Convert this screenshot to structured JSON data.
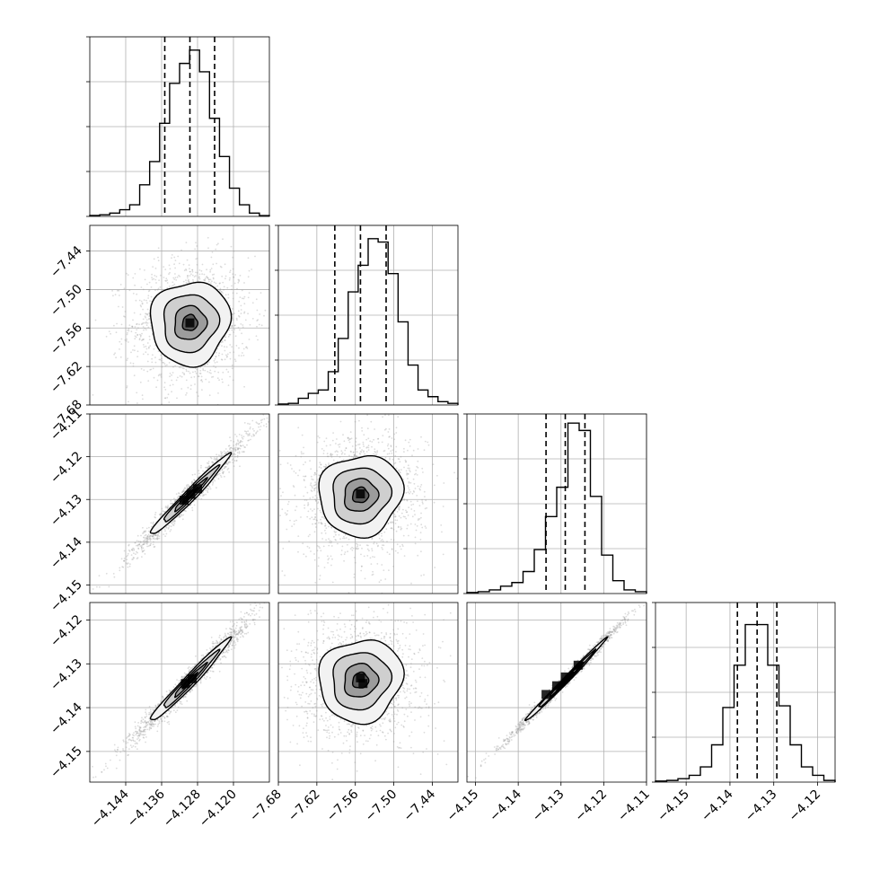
{
  "figure": {
    "title": "",
    "columns": [
      "x0",
      "x1",
      "x2",
      "x3"
    ]
  },
  "chart_data": {
    "type": "corner",
    "title": "",
    "grid": true,
    "variables": [
      {
        "key": "x0",
        "label": "",
        "range": [
          -4.152,
          -4.112
        ],
        "ticks": [
          -4.144,
          -4.136,
          -4.128,
          -4.12
        ],
        "tick_labels": [
          "−4.144",
          "−4.136",
          "−4.128",
          "−4.120"
        ],
        "quantiles": [
          -4.1353,
          -4.1297,
          -4.1242
        ],
        "histogram": {
          "counts": [
            0.006,
            0.01,
            0.02,
            0.04,
            0.07,
            0.19,
            0.33,
            0.56,
            0.8,
            0.92,
            1.0,
            0.87,
            0.59,
            0.36,
            0.17,
            0.07,
            0.02,
            0.005
          ],
          "ymax": 1.08
        }
      },
      {
        "key": "x1",
        "label": "",
        "range": [
          -7.68,
          -7.4
        ],
        "ticks": [
          -7.68,
          -7.62,
          -7.56,
          -7.5,
          -7.44
        ],
        "tick_labels": [
          "−7.68",
          "−7.62",
          "−7.56",
          "−7.50",
          "−7.44"
        ],
        "quantiles": [
          -7.592,
          -7.552,
          -7.512
        ],
        "histogram": {
          "counts": [
            0.006,
            0.01,
            0.04,
            0.07,
            0.09,
            0.2,
            0.4,
            0.68,
            0.84,
            1.0,
            0.98,
            0.79,
            0.5,
            0.24,
            0.09,
            0.05,
            0.02,
            0.01
          ],
          "ymax": 1.08
        }
      },
      {
        "key": "x2",
        "label": "",
        "range": [
          -4.152,
          -4.11
        ],
        "ticks": [
          -4.15,
          -4.14,
          -4.13,
          -4.12,
          -4.11
        ],
        "tick_labels": [
          "−4.15",
          "−4.14",
          "−4.13",
          "−4.12",
          "−4.11"
        ],
        "quantiles": [
          -4.1335,
          -4.129,
          -4.1244
        ],
        "histogram": {
          "counts": [
            0.006,
            0.01,
            0.02,
            0.04,
            0.06,
            0.12,
            0.24,
            0.42,
            0.58,
            0.93,
            0.89,
            0.53,
            0.21,
            0.07,
            0.02,
            0.01
          ],
          "ymax": 0.98
        }
      },
      {
        "key": "x3",
        "label": "",
        "range": [
          -4.157,
          -4.116
        ],
        "ticks": [
          -4.15,
          -4.14,
          -4.13,
          -4.12
        ],
        "tick_labels": [
          "−4.15",
          "−4.14",
          "−4.13",
          "−4.12"
        ],
        "quantiles": [
          -4.1383,
          -4.1338,
          -4.1293
        ],
        "histogram": {
          "counts": [
            0.006,
            0.01,
            0.02,
            0.04,
            0.09,
            0.22,
            0.44,
            0.69,
            0.93,
            0.93,
            0.69,
            0.45,
            0.22,
            0.09,
            0.04,
            0.01
          ],
          "ymax": 1.06
        }
      }
    ],
    "pairs": [
      {
        "x": "x0",
        "y": "x1",
        "center": [
          -4.1297,
          -7.552
        ],
        "sigma": [
          0.0042,
          0.031
        ],
        "rho": 0.05,
        "peaks": [
          [
            -4.1297,
            -7.552
          ]
        ]
      },
      {
        "x": "x0",
        "y": "x2",
        "center": [
          -4.1297,
          -4.129
        ],
        "sigma": [
          0.0042,
          0.0045
        ],
        "rho": 0.98,
        "peaks": [
          [
            -4.131,
            -4.1302
          ],
          [
            -4.1295,
            -4.1288
          ],
          [
            -4.128,
            -4.1275
          ]
        ]
      },
      {
        "x": "x1",
        "y": "x2",
        "center": [
          -7.552,
          -4.129
        ],
        "sigma": [
          0.031,
          0.0045
        ],
        "rho": 0.06,
        "peaks": [
          [
            -7.552,
            -4.1287
          ]
        ]
      },
      {
        "x": "x0",
        "y": "x3",
        "center": [
          -4.1297,
          -4.1338
        ],
        "sigma": [
          0.0042,
          0.0045
        ],
        "rho": 0.98,
        "peaks": [
          [
            -4.1307,
            -4.1345
          ],
          [
            -4.1292,
            -4.1334
          ]
        ]
      },
      {
        "x": "x1",
        "y": "x3",
        "center": [
          -7.552,
          -4.1338
        ],
        "sigma": [
          0.031,
          0.0045
        ],
        "rho": 0.07,
        "peaks": [
          [
            -7.548,
            -4.1345
          ],
          [
            -7.552,
            -4.1332
          ]
        ]
      },
      {
        "x": "x2",
        "y": "x3",
        "center": [
          -4.129,
          -4.1338
        ],
        "sigma": [
          0.0045,
          0.0045
        ],
        "rho": 0.995,
        "peaks": [
          [
            -4.1335,
            -4.137
          ],
          [
            -4.131,
            -4.135
          ],
          [
            -4.129,
            -4.133
          ],
          [
            -4.126,
            -4.1303
          ]
        ]
      }
    ]
  }
}
